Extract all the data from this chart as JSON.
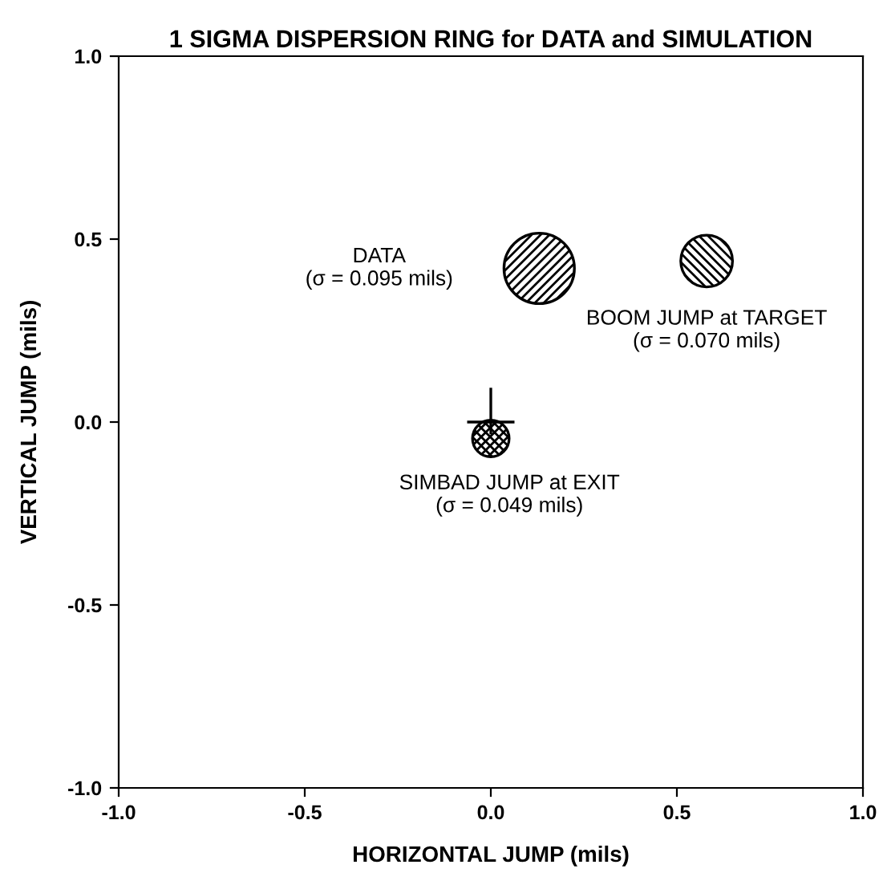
{
  "chart_data": {
    "type": "bubble",
    "title": "1 SIGMA DISPERSION RING for DATA and SIMULATION",
    "xlabel": "HORIZONTAL JUMP (mils)",
    "ylabel": "VERTICAL JUMP (mils)",
    "xlim": [
      -1.0,
      1.0
    ],
    "ylim": [
      -1.0,
      1.0
    ],
    "xticks": [
      {
        "value": -1.0,
        "label": "-1.0"
      },
      {
        "value": -0.5,
        "label": "-0.5"
      },
      {
        "value": 0.0,
        "label": "0.0"
      },
      {
        "value": 0.5,
        "label": "0.5"
      },
      {
        "value": 1.0,
        "label": "1.0"
      }
    ],
    "yticks": [
      {
        "value": -1.0,
        "label": "-1.0"
      },
      {
        "value": -0.5,
        "label": "-0.5"
      },
      {
        "value": 0.0,
        "label": "0.0"
      },
      {
        "value": 0.5,
        "label": "0.5"
      },
      {
        "value": 1.0,
        "label": "1.0"
      }
    ],
    "grid": false,
    "legend": false,
    "series": [
      {
        "color": "#000000",
        "x": [
          0.13,
          0.58,
          0.0
        ],
        "values": [
          0.42,
          0.44,
          -0.045
        ],
        "sizes": [
          1,
          0.54,
          0.27
        ]
      }
    ],
    "annotations": [
      "DATA\n(σ = 0.095 mils)",
      "BOOM JUMP at TARGET\n(σ = 0.070 mils)",
      "SIMBAD JUMP at EXIT\n(σ = 0.049 mils)"
    ]
  }
}
